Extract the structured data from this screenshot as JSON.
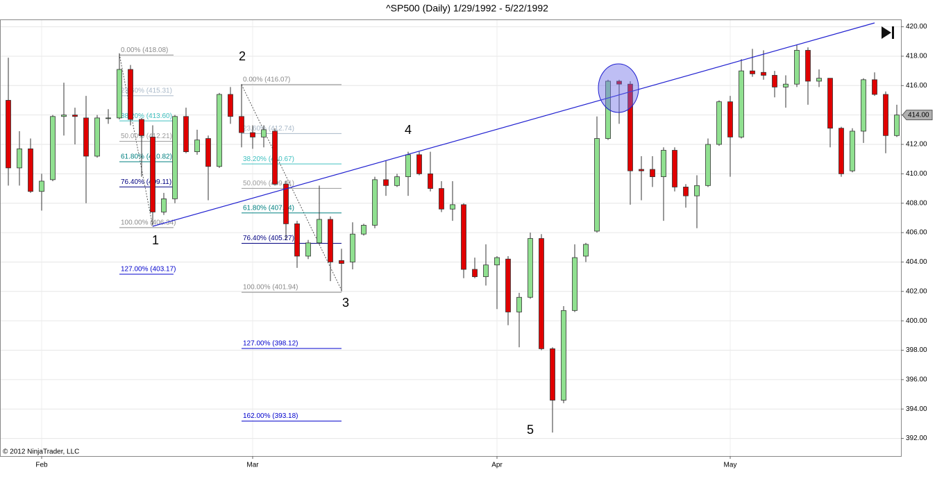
{
  "chart_data": {
    "type": "candlestick",
    "title": "^SP500 (Daily)  1/29/1992 - 5/22/1992",
    "copyright": "© 2012 NinjaTrader, LLC",
    "categories": [
      null,
      null,
      null,
      "Feb",
      null,
      null,
      null,
      null,
      null,
      null,
      null,
      null,
      null,
      null,
      null,
      null,
      null,
      null,
      null,
      null,
      null,
      null,
      "Mar",
      null,
      null,
      null,
      null,
      null,
      null,
      null,
      null,
      null,
      null,
      null,
      null,
      null,
      null,
      null,
      null,
      null,
      null,
      null,
      null,
      null,
      "Apr",
      null,
      null,
      null,
      null,
      null,
      null,
      null,
      null,
      null,
      null,
      null,
      null,
      null,
      null,
      null,
      null,
      null,
      null,
      null,
      null,
      "May",
      null,
      null,
      null,
      null,
      null,
      null,
      null,
      null,
      null,
      null,
      null,
      null,
      null,
      null,
      null
    ],
    "open": [
      415.0,
      410.4,
      411.7,
      408.8,
      409.6,
      413.9,
      414.0,
      413.8,
      411.2,
      413.8,
      413.8,
      417.1,
      413.7,
      412.5,
      407.4,
      408.3,
      413.9,
      411.5,
      412.4,
      410.5,
      415.4,
      413.9,
      412.8,
      412.5,
      412.9,
      409.3,
      406.6,
      404.4,
      405.3,
      406.9,
      404.1,
      404.0,
      405.9,
      406.5,
      409.6,
      409.2,
      409.8,
      411.3,
      410.0,
      409.0,
      407.6,
      407.9,
      403.5,
      403.0,
      403.8,
      404.2,
      400.6,
      401.6,
      405.6,
      398.1,
      394.6,
      400.7,
      404.4,
      406.1,
      412.4,
      416.3,
      416.1,
      410.3,
      410.3,
      409.8,
      411.6,
      409.1,
      408.5,
      409.2,
      412.0,
      414.9,
      412.5,
      417.0,
      416.9,
      416.7,
      415.9,
      416.1,
      418.4,
      416.3,
      416.5,
      413.1,
      410.2,
      412.9,
      416.4,
      415.4,
      412.6
    ],
    "high": [
      417.9,
      412.9,
      412.4,
      410.0,
      414.0,
      416.2,
      414.5,
      415.3,
      414.0,
      414.4,
      418.2,
      417.4,
      413.8,
      413.3,
      408.7,
      414.0,
      414.5,
      413.0,
      412.6,
      415.5,
      415.9,
      416.1,
      413.3,
      413.3,
      413.1,
      409.5,
      406.8,
      405.5,
      409.2,
      407.1,
      404.9,
      406.7,
      406.6,
      409.8,
      410.9,
      410.0,
      411.5,
      411.5,
      411.5,
      409.5,
      409.5,
      408.0,
      404.3,
      405.2,
      404.4,
      404.4,
      401.9,
      406.0,
      405.9,
      398.2,
      401.0,
      405.2,
      405.3,
      413.9,
      416.4,
      416.4,
      416.3,
      411.2,
      411.2,
      411.8,
      411.8,
      409.3,
      409.9,
      412.4,
      415.0,
      415.3,
      417.8,
      418.5,
      418.4,
      417.0,
      416.7,
      418.8,
      418.6,
      417.1,
      416.5,
      413.2,
      413.1,
      416.5,
      416.9,
      415.6,
      414.7
    ],
    "low": [
      409.2,
      409.2,
      408.7,
      407.5,
      409.5,
      412.6,
      412.0,
      408.0,
      411.1,
      413.4,
      413.7,
      413.3,
      409.8,
      406.5,
      407.2,
      408.0,
      411.4,
      411.3,
      408.2,
      410.4,
      413.4,
      411.8,
      411.7,
      411.8,
      409.2,
      405.5,
      403.6,
      404.2,
      405.2,
      402.7,
      402.0,
      403.5,
      405.8,
      406.3,
      408.5,
      409.1,
      408.5,
      409.9,
      408.8,
      407.4,
      406.8,
      402.9,
      402.9,
      402.4,
      400.8,
      399.7,
      398.2,
      401.5,
      398.0,
      392.4,
      394.4,
      400.6,
      404.0,
      406.0,
      412.3,
      413.4,
      407.9,
      408.2,
      409.1,
      406.8,
      408.8,
      407.7,
      406.3,
      409.1,
      411.9,
      409.8,
      412.4,
      416.6,
      416.4,
      415.2,
      414.5,
      415.9,
      414.7,
      415.9,
      411.8,
      409.8,
      410.1,
      412.1,
      415.3,
      411.4,
      412.5
    ],
    "close": [
      410.4,
      411.7,
      408.8,
      409.5,
      413.9,
      414.0,
      413.9,
      411.2,
      413.8,
      413.8,
      417.1,
      413.7,
      412.6,
      407.4,
      408.3,
      413.9,
      411.5,
      412.3,
      410.5,
      415.4,
      413.9,
      412.8,
      412.5,
      413.0,
      409.3,
      406.6,
      404.4,
      405.3,
      406.9,
      404.0,
      403.9,
      405.9,
      406.5,
      409.6,
      409.2,
      409.8,
      411.3,
      410.0,
      409.0,
      407.6,
      407.9,
      403.5,
      403.0,
      403.8,
      404.3,
      400.6,
      401.6,
      405.6,
      398.1,
      394.6,
      400.7,
      404.3,
      405.2,
      412.4,
      416.3,
      416.1,
      410.2,
      410.2,
      409.8,
      411.6,
      409.1,
      408.5,
      409.2,
      412.0,
      414.9,
      412.5,
      417.0,
      416.8,
      416.7,
      415.9,
      416.1,
      418.4,
      416.3,
      416.5,
      413.1,
      410.0,
      412.9,
      416.4,
      415.4,
      412.6,
      414.0
    ],
    "up_color": "#90e090",
    "down_color": "#e00000",
    "ylim": [
      390.8,
      420.5
    ],
    "yticks": [
      {
        "value": 392,
        "label": "392.00"
      },
      {
        "value": 394,
        "label": "394.00"
      },
      {
        "value": 396,
        "label": "396.00"
      },
      {
        "value": 398,
        "label": "398.00"
      },
      {
        "value": 400,
        "label": "400.00"
      },
      {
        "value": 402,
        "label": "402.00"
      },
      {
        "value": 404,
        "label": "404.00"
      },
      {
        "value": 406,
        "label": "406.00"
      },
      {
        "value": 408,
        "label": "408.00"
      },
      {
        "value": 410,
        "label": "410.00"
      },
      {
        "value": 412,
        "label": "412.00"
      },
      {
        "value": 414,
        "label": "414.00"
      },
      {
        "value": 416,
        "label": "416.00"
      },
      {
        "value": 418,
        "label": "418.00"
      },
      {
        "value": 420,
        "label": "420.00"
      }
    ],
    "last_price": {
      "value": 414.0,
      "label": "414.00"
    },
    "grid": true,
    "wave_labels": [
      "1",
      "2",
      "3",
      "4",
      "5"
    ],
    "fibonacci": [
      {
        "levels": [
          {
            "value": 418.08,
            "label": "0.00% (418.08)",
            "color": "#8a8a8a"
          },
          {
            "value": 415.31,
            "label": "23.60% (415.31)",
            "color": "#a8b8c8"
          },
          {
            "value": 413.6,
            "label": "38.20% (413.60)",
            "color": "#40c0c0"
          },
          {
            "value": 412.21,
            "label": "50.00% (412.21)",
            "color": "#9a9a9a"
          },
          {
            "value": 410.82,
            "label": "61.80% (410.82)",
            "color": "#008080"
          },
          {
            "value": 409.11,
            "label": "76.40% (409.11)",
            "color": "#000080"
          },
          {
            "value": 406.34,
            "label": "100.00% (406.34)",
            "color": "#8a8a8a"
          },
          {
            "value": 403.17,
            "label": "127.00% (403.17)",
            "color": "#0000cc"
          }
        ]
      },
      {
        "levels": [
          {
            "value": 416.07,
            "label": "0.00% (416.07)",
            "color": "#8a8a8a"
          },
          {
            "value": 412.74,
            "label": "23.60% (412.74)",
            "color": "#a8b8c8"
          },
          {
            "value": 410.67,
            "label": "38.20% (410.67)",
            "color": "#40c0c0"
          },
          {
            "value": 409.01,
            "label": "50.00% (409.01)",
            "color": "#9a9a9a"
          },
          {
            "value": 407.34,
            "label": "61.80% (407.34)",
            "color": "#008080"
          },
          {
            "value": 405.27,
            "label": "76.40% (405.27)",
            "color": "#000080"
          },
          {
            "value": 401.94,
            "label": "100.00% (401.94)",
            "color": "#8a8a8a"
          },
          {
            "value": 398.12,
            "label": "127.00% (398.12)",
            "color": "#0000cc"
          },
          {
            "value": 393.18,
            "label": "162.00% (393.18)",
            "color": "#0000cc"
          }
        ]
      }
    ]
  }
}
